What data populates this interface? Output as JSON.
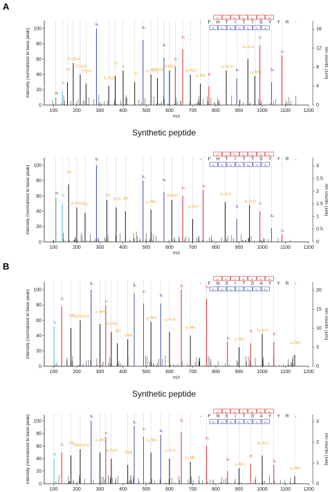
{
  "colors": {
    "b": "#3344aa",
    "y": "#d42020",
    "internal": "#f0a020",
    "immonium": "#2e8b57",
    "prec": "#40b8d8",
    "peak": "#111111"
  },
  "panels": [
    {
      "label": "A"
    },
    {
      "label": "B"
    }
  ],
  "subtitles": [
    "Synthetic peptide",
    "Synthetic peptide"
  ],
  "chart_data": [
    {
      "type": "bar",
      "panel": "A",
      "sequence": [
        "-",
        "F",
        "H",
        "T",
        "I",
        "T",
        "T",
        "S",
        "Y",
        "Y",
        "R",
        "-"
      ],
      "b_ions": [
        "b₂",
        "b₃",
        "b₄",
        "b₅",
        "b₆",
        "b₇",
        "b₈"
      ],
      "y_ions": [
        "y₂",
        "y₃",
        "y₄",
        "y₅",
        "y₆",
        "y₇",
        "y₈"
      ],
      "xlabel": "m/z",
      "ylabel": "Intensity (normalized to base peak)",
      "y2label": "Ion counts [1e4]",
      "xlim": [
        60,
        1200
      ],
      "ylim": [
        0,
        110
      ],
      "xticks": [
        100,
        200,
        300,
        400,
        500,
        600,
        700,
        800,
        900,
        1000,
        1100,
        1200
      ],
      "yticks": [
        0,
        20,
        40,
        60,
        80,
        100
      ],
      "y2ticks": [
        0,
        4,
        8,
        12,
        16
      ],
      "peaks": [
        {
          "x": 110,
          "y": 10,
          "kind": "immonium",
          "label": "IH"
        },
        {
          "x": 138,
          "y": 18,
          "kind": "prec",
          "label": "H"
        },
        {
          "x": 160,
          "y": 30,
          "kind": "internal",
          "label": "HT"
        },
        {
          "x": 185,
          "y": 55,
          "kind": "internal",
          "label": "IT-CH₂O"
        },
        {
          "x": 215,
          "y": 40,
          "kind": "internal",
          "label": "IT-H₂O"
        },
        {
          "x": 240,
          "y": 28,
          "kind": "internal",
          "label": "TTSYY"
        },
        {
          "x": 285,
          "y": 100,
          "kind": "b",
          "label": "b₂"
        },
        {
          "x": 338,
          "y": 25,
          "kind": "internal",
          "label": "b₃-H₂O"
        },
        {
          "x": 366,
          "y": 38,
          "kind": "internal",
          "label": "TT"
        },
        {
          "x": 400,
          "y": 45,
          "kind": "internal",
          "label": "a₃"
        },
        {
          "x": 450,
          "y": 30,
          "kind": "internal",
          "label": "TI"
        },
        {
          "x": 486,
          "y": 85,
          "kind": "b",
          "label": "b₃"
        },
        {
          "x": 520,
          "y": 40,
          "kind": "internal",
          "label": "y₄-NH₃"
        },
        {
          "x": 548,
          "y": 35,
          "kind": "internal",
          "label": "TTSYY"
        },
        {
          "x": 576,
          "y": 62,
          "kind": "b",
          "label": "b₄"
        },
        {
          "x": 600,
          "y": 45,
          "kind": "internal",
          "label": "ITTSYY"
        },
        {
          "x": 625,
          "y": 50,
          "kind": "y",
          "label": "y₄"
        },
        {
          "x": 657,
          "y": 73,
          "kind": "y",
          "label": "y₅"
        },
        {
          "x": 690,
          "y": 40,
          "kind": "internal",
          "label": "y₅-H₂O"
        },
        {
          "x": 733,
          "y": 28,
          "kind": "internal",
          "label": "y₆-NH₃"
        },
        {
          "x": 770,
          "y": 25,
          "kind": "y",
          "label": "y₆"
        },
        {
          "x": 845,
          "y": 45,
          "kind": "internal",
          "label": "b₇-H₂O"
        },
        {
          "x": 890,
          "y": 35,
          "kind": "b",
          "label": "b₇"
        },
        {
          "x": 938,
          "y": 60,
          "kind": "internal",
          "label": "b₈-H₂O"
        },
        {
          "x": 968,
          "y": 38,
          "kind": "internal",
          "label": "y₈-NH₃"
        },
        {
          "x": 990,
          "y": 78,
          "kind": "y",
          "label": "y₇"
        },
        {
          "x": 1040,
          "y": 30,
          "kind": "b",
          "label": "b₈"
        },
        {
          "x": 1085,
          "y": 65,
          "kind": "y",
          "label": "y₈"
        }
      ]
    },
    {
      "type": "bar",
      "panel": "A-synthetic",
      "sequence": [
        "-",
        "F",
        "H",
        "T",
        "I",
        "T",
        "T",
        "S",
        "Y",
        "Y",
        "R",
        "-"
      ],
      "b_ions": [
        "b₂",
        "b₃",
        "b₄",
        "b₅",
        "b₆",
        "b₇",
        "b₈"
      ],
      "y_ions": [
        "y₂",
        "y₃",
        "y₄",
        "y₅",
        "y₆",
        "y₇",
        "y₈"
      ],
      "xlabel": "m/z",
      "ylabel": "Intensity (normalized to base peak)",
      "y2label": "Ion counts [1e6]",
      "xlim": [
        60,
        1200
      ],
      "ylim": [
        0,
        110
      ],
      "xticks": [
        100,
        200,
        300,
        400,
        500,
        600,
        700,
        800,
        900,
        1000,
        1100,
        1200
      ],
      "yticks": [
        0,
        20,
        40,
        60,
        80,
        100
      ],
      "y2ticks": [
        0,
        0.5,
        1,
        1.5,
        2,
        2.5,
        3
      ],
      "peaks": [
        {
          "x": 110,
          "y": 58,
          "kind": "immonium",
          "label": "IH"
        },
        {
          "x": 138,
          "y": 50,
          "kind": "prec",
          "label": "H"
        },
        {
          "x": 165,
          "y": 75,
          "kind": "internal",
          "label": "HT"
        },
        {
          "x": 200,
          "y": 45,
          "kind": "internal",
          "label": "IT-CH₂O"
        },
        {
          "x": 236,
          "y": 38,
          "kind": "internal",
          "label": "TT"
        },
        {
          "x": 285,
          "y": 100,
          "kind": "b",
          "label": "b₂"
        },
        {
          "x": 330,
          "y": 55,
          "kind": "internal",
          "label": "TTY"
        },
        {
          "x": 370,
          "y": 45,
          "kind": "internal",
          "label": "ITTS"
        },
        {
          "x": 410,
          "y": 40,
          "kind": "internal",
          "label": "IHT"
        },
        {
          "x": 486,
          "y": 80,
          "kind": "b",
          "label": "b₃"
        },
        {
          "x": 520,
          "y": 42,
          "kind": "internal",
          "label": "y₄-NH₃"
        },
        {
          "x": 576,
          "y": 65,
          "kind": "b",
          "label": "b₄"
        },
        {
          "x": 610,
          "y": 55,
          "kind": "internal",
          "label": "ITTSYY"
        },
        {
          "x": 657,
          "y": 60,
          "kind": "y",
          "label": "y₅"
        },
        {
          "x": 700,
          "y": 30,
          "kind": "internal",
          "label": "y₅-H₂O"
        },
        {
          "x": 745,
          "y": 68,
          "kind": "y",
          "label": "y₆"
        },
        {
          "x": 840,
          "y": 52,
          "kind": "internal",
          "label": "b₇-H₂O"
        },
        {
          "x": 890,
          "y": 30,
          "kind": "b",
          "label": "b₇"
        },
        {
          "x": 945,
          "y": 48,
          "kind": "internal",
          "label": "b₈-H₂O"
        },
        {
          "x": 990,
          "y": 40,
          "kind": "y",
          "label": "y₇"
        },
        {
          "x": 1040,
          "y": 18,
          "kind": "b",
          "label": "b₈"
        },
        {
          "x": 1085,
          "y": 10,
          "kind": "y",
          "label": "y₈"
        }
      ]
    },
    {
      "type": "bar",
      "panel": "B",
      "sequence": [
        "-",
        "F",
        "N",
        "S",
        "I",
        "T",
        "S",
        "A",
        "Y",
        "Y",
        "R",
        "-"
      ],
      "b_ions": [
        "b₂",
        "b₃",
        "b₄",
        "b₅",
        "b₆",
        "b₇",
        "b₈"
      ],
      "y_ions": [
        "y₂",
        "y₃",
        "y₄",
        "y₅",
        "y₆",
        "y₇",
        "y₈"
      ],
      "xlabel": "m/z",
      "ylabel": "Intensity (normalized to base peak)",
      "y2label": "Ion counts [1e5]",
      "xlim": [
        60,
        1200
      ],
      "ylim": [
        0,
        110
      ],
      "xticks": [
        100,
        200,
        300,
        400,
        500,
        600,
        700,
        800,
        900,
        1000,
        1100,
        1200
      ],
      "yticks": [
        0,
        20,
        40,
        60,
        80,
        100
      ],
      "y2ticks": [
        0,
        5,
        10,
        15,
        20
      ],
      "peaks": [
        {
          "x": 102,
          "y": 52,
          "kind": "prec",
          "label": "N"
        },
        {
          "x": 135,
          "y": 78,
          "kind": "y",
          "label": "y₁"
        },
        {
          "x": 175,
          "y": 50,
          "kind": "internal",
          "label": "NS"
        },
        {
          "x": 215,
          "y": 60,
          "kind": "internal",
          "label": "TSA-CH₂O"
        },
        {
          "x": 262,
          "y": 100,
          "kind": "b",
          "label": "b₂"
        },
        {
          "x": 300,
          "y": 55,
          "kind": "internal",
          "label": "y₂-NH₃"
        },
        {
          "x": 325,
          "y": 80,
          "kind": "y",
          "label": "y₂"
        },
        {
          "x": 349,
          "y": 45,
          "kind": "internal",
          "label": "b₃-H₂O"
        },
        {
          "x": 375,
          "y": 30,
          "kind": "internal",
          "label": "NSI"
        },
        {
          "x": 420,
          "y": 35,
          "kind": "internal",
          "label": "ITSA"
        },
        {
          "x": 448,
          "y": 95,
          "kind": "b",
          "label": "b₄"
        },
        {
          "x": 488,
          "y": 82,
          "kind": "y",
          "label": "y₃"
        },
        {
          "x": 520,
          "y": 58,
          "kind": "internal",
          "label": "y₃-NH₃"
        },
        {
          "x": 562,
          "y": 82,
          "kind": "b",
          "label": "b₅"
        },
        {
          "x": 600,
          "y": 45,
          "kind": "internal",
          "label": "y₄-H₂O"
        },
        {
          "x": 651,
          "y": 100,
          "kind": "y",
          "label": "y₄"
        },
        {
          "x": 690,
          "y": 40,
          "kind": "internal",
          "label": "y₅-NH₃"
        },
        {
          "x": 760,
          "y": 88,
          "kind": "y",
          "label": "y₅"
        },
        {
          "x": 850,
          "y": 32,
          "kind": "y",
          "label": "y₆"
        },
        {
          "x": 900,
          "y": 25,
          "kind": "internal",
          "label": "y₇-NH₃"
        },
        {
          "x": 950,
          "y": 30,
          "kind": "y",
          "label": "y₇"
        },
        {
          "x": 1000,
          "y": 42,
          "kind": "internal",
          "label": "b₈-H₂O"
        },
        {
          "x": 1050,
          "y": 32,
          "kind": "y",
          "label": "y₈"
        },
        {
          "x": 1140,
          "y": 15,
          "kind": "internal",
          "label": "y₈-NH₃"
        }
      ]
    },
    {
      "type": "bar",
      "panel": "B-synthetic",
      "sequence": [
        "-",
        "F",
        "N",
        "S",
        "I",
        "T",
        "S",
        "A",
        "Y",
        "Y",
        "R",
        "-"
      ],
      "b_ions": [
        "b₂",
        "b₃",
        "b₄",
        "b₅",
        "b₆",
        "b₇",
        "b₈"
      ],
      "y_ions": [
        "y₂",
        "y₃",
        "y₄",
        "y₅",
        "y₆",
        "y₇",
        "y₈"
      ],
      "xlabel": "m/z",
      "ylabel": "Intensity (normalized to base peak)",
      "y2label": "Ion counts [1e6]",
      "xlim": [
        60,
        1200
      ],
      "ylim": [
        0,
        110
      ],
      "xticks": [
        100,
        200,
        300,
        400,
        500,
        600,
        700,
        800,
        900,
        1000,
        1100,
        1200
      ],
      "yticks": [
        0,
        20,
        40,
        60,
        80,
        100
      ],
      "y2ticks": [
        0,
        1,
        2,
        3
      ],
      "peaks": [
        {
          "x": 102,
          "y": 40,
          "kind": "prec",
          "label": "N"
        },
        {
          "x": 135,
          "y": 50,
          "kind": "y",
          "label": "y₁"
        },
        {
          "x": 175,
          "y": 45,
          "kind": "internal",
          "label": "NS"
        },
        {
          "x": 215,
          "y": 55,
          "kind": "internal",
          "label": "TSA-CH₂O"
        },
        {
          "x": 262,
          "y": 100,
          "kind": "b",
          "label": "b₂"
        },
        {
          "x": 300,
          "y": 50,
          "kind": "internal",
          "label": "y₂-NH₃"
        },
        {
          "x": 325,
          "y": 75,
          "kind": "y",
          "label": "y₂"
        },
        {
          "x": 349,
          "y": 40,
          "kind": "internal",
          "label": "b₃-H₂O"
        },
        {
          "x": 420,
          "y": 30,
          "kind": "internal",
          "label": "ITSA"
        },
        {
          "x": 448,
          "y": 92,
          "kind": "b",
          "label": "b₄"
        },
        {
          "x": 488,
          "y": 75,
          "kind": "y",
          "label": "y₃"
        },
        {
          "x": 520,
          "y": 50,
          "kind": "internal",
          "label": "y₃-NH₃"
        },
        {
          "x": 562,
          "y": 78,
          "kind": "b",
          "label": "b₅"
        },
        {
          "x": 600,
          "y": 40,
          "kind": "internal",
          "label": "y₄-H₂O"
        },
        {
          "x": 651,
          "y": 82,
          "kind": "y",
          "label": "y₄"
        },
        {
          "x": 690,
          "y": 35,
          "kind": "internal",
          "label": "y₅-NH₃"
        },
        {
          "x": 760,
          "y": 60,
          "kind": "y",
          "label": "y₅"
        },
        {
          "x": 850,
          "y": 20,
          "kind": "y",
          "label": "y₆"
        },
        {
          "x": 900,
          "y": 25,
          "kind": "internal",
          "label": "y₇-NH₃"
        },
        {
          "x": 950,
          "y": 32,
          "kind": "y",
          "label": "y₇"
        },
        {
          "x": 1000,
          "y": 45,
          "kind": "internal",
          "label": "b₈-H₂O"
        },
        {
          "x": 1050,
          "y": 30,
          "kind": "y",
          "label": "y₈"
        },
        {
          "x": 1140,
          "y": 12,
          "kind": "internal",
          "label": "y₈-NH₃"
        }
      ]
    }
  ]
}
